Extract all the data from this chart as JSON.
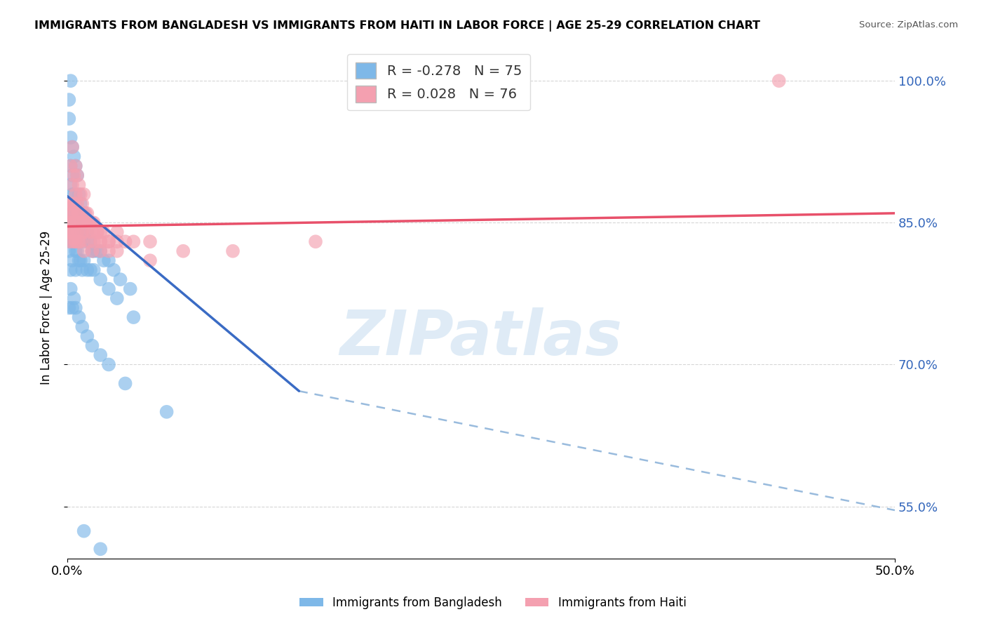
{
  "title": "IMMIGRANTS FROM BANGLADESH VS IMMIGRANTS FROM HAITI IN LABOR FORCE | AGE 25-29 CORRELATION CHART",
  "source": "Source: ZipAtlas.com",
  "ylabel": "In Labor Force | Age 25-29",
  "xlim": [
    0.0,
    0.5
  ],
  "ylim": [
    0.495,
    1.025
  ],
  "yticks": [
    0.55,
    0.7,
    0.85,
    1.0
  ],
  "ytick_labels": [
    "55.0%",
    "70.0%",
    "85.0%",
    "100.0%"
  ],
  "xticks": [
    0.0,
    0.5
  ],
  "xtick_labels": [
    "0.0%",
    "50.0%"
  ],
  "bangladesh_color": "#7EB8E8",
  "haiti_color": "#F4A0B0",
  "line_bangladesh_color": "#3A6BC4",
  "line_haiti_color": "#E8506A",
  "dash_color": "#99BBDD",
  "bangladesh_R": -0.278,
  "bangladesh_N": 75,
  "haiti_R": 0.028,
  "haiti_N": 76,
  "legend_label_bangladesh": "Immigrants from Bangladesh",
  "legend_label_haiti": "Immigrants from Haiti",
  "watermark": "ZIPatlas",
  "background_color": "#ffffff",
  "grid_color": "#cccccc",
  "bangladesh_x": [
    0.001,
    0.001,
    0.002,
    0.002,
    0.002,
    0.002,
    0.003,
    0.003,
    0.003,
    0.003,
    0.004,
    0.004,
    0.004,
    0.005,
    0.005,
    0.005,
    0.006,
    0.006,
    0.006,
    0.007,
    0.007,
    0.008,
    0.008,
    0.009,
    0.009,
    0.01,
    0.01,
    0.011,
    0.012,
    0.013,
    0.014,
    0.015,
    0.016,
    0.018,
    0.02,
    0.022,
    0.025,
    0.028,
    0.032,
    0.038,
    0.001,
    0.002,
    0.002,
    0.003,
    0.003,
    0.004,
    0.005,
    0.005,
    0.006,
    0.007,
    0.008,
    0.009,
    0.01,
    0.012,
    0.014,
    0.016,
    0.02,
    0.025,
    0.03,
    0.04,
    0.001,
    0.002,
    0.003,
    0.004,
    0.005,
    0.007,
    0.009,
    0.012,
    0.015,
    0.02,
    0.025,
    0.035,
    0.06,
    0.01,
    0.02
  ],
  "bangladesh_y": [
    0.98,
    0.96,
    0.94,
    0.91,
    0.89,
    1.0,
    0.93,
    0.9,
    0.88,
    0.86,
    0.92,
    0.88,
    0.85,
    0.91,
    0.87,
    0.85,
    0.9,
    0.86,
    0.84,
    0.88,
    0.85,
    0.87,
    0.84,
    0.86,
    0.84,
    0.86,
    0.83,
    0.85,
    0.84,
    0.83,
    0.83,
    0.82,
    0.82,
    0.82,
    0.82,
    0.81,
    0.81,
    0.8,
    0.79,
    0.78,
    0.82,
    0.83,
    0.8,
    0.84,
    0.81,
    0.83,
    0.82,
    0.8,
    0.82,
    0.81,
    0.81,
    0.8,
    0.81,
    0.8,
    0.8,
    0.8,
    0.79,
    0.78,
    0.77,
    0.75,
    0.76,
    0.78,
    0.76,
    0.77,
    0.76,
    0.75,
    0.74,
    0.73,
    0.72,
    0.71,
    0.7,
    0.68,
    0.65,
    0.524,
    0.505
  ],
  "haiti_x": [
    0.001,
    0.001,
    0.002,
    0.002,
    0.003,
    0.003,
    0.003,
    0.004,
    0.004,
    0.005,
    0.005,
    0.006,
    0.006,
    0.007,
    0.007,
    0.008,
    0.008,
    0.009,
    0.01,
    0.01,
    0.011,
    0.012,
    0.013,
    0.014,
    0.015,
    0.016,
    0.018,
    0.02,
    0.022,
    0.025,
    0.03,
    0.035,
    0.04,
    0.05,
    0.001,
    0.002,
    0.003,
    0.004,
    0.005,
    0.006,
    0.007,
    0.008,
    0.009,
    0.01,
    0.012,
    0.015,
    0.018,
    0.02,
    0.025,
    0.03,
    0.001,
    0.002,
    0.003,
    0.004,
    0.005,
    0.006,
    0.008,
    0.01,
    0.013,
    0.016,
    0.02,
    0.025,
    0.001,
    0.002,
    0.003,
    0.005,
    0.007,
    0.01,
    0.015,
    0.02,
    0.03,
    0.05,
    0.07,
    0.1,
    0.15,
    0.43
  ],
  "haiti_y": [
    0.87,
    0.85,
    0.91,
    0.87,
    0.93,
    0.89,
    0.86,
    0.9,
    0.87,
    0.91,
    0.88,
    0.9,
    0.87,
    0.89,
    0.86,
    0.88,
    0.86,
    0.87,
    0.88,
    0.85,
    0.86,
    0.86,
    0.85,
    0.85,
    0.85,
    0.85,
    0.84,
    0.84,
    0.84,
    0.83,
    0.84,
    0.83,
    0.83,
    0.83,
    0.85,
    0.86,
    0.86,
    0.87,
    0.85,
    0.86,
    0.85,
    0.85,
    0.84,
    0.85,
    0.84,
    0.84,
    0.84,
    0.83,
    0.83,
    0.83,
    0.84,
    0.85,
    0.84,
    0.84,
    0.83,
    0.84,
    0.83,
    0.84,
    0.83,
    0.83,
    0.83,
    0.82,
    0.83,
    0.84,
    0.83,
    0.83,
    0.83,
    0.82,
    0.82,
    0.82,
    0.82,
    0.81,
    0.82,
    0.82,
    0.83,
    1.0
  ],
  "bang_line_x0": 0.0,
  "bang_line_x1": 0.14,
  "bang_line_y0": 0.878,
  "bang_line_y1": 0.672,
  "dash_line_x0": 0.14,
  "dash_line_x1": 0.5,
  "dash_line_y0": 0.672,
  "dash_line_y1": 0.546,
  "haiti_line_x0": 0.0,
  "haiti_line_x1": 0.5,
  "haiti_line_y0": 0.846,
  "haiti_line_y1": 0.86
}
